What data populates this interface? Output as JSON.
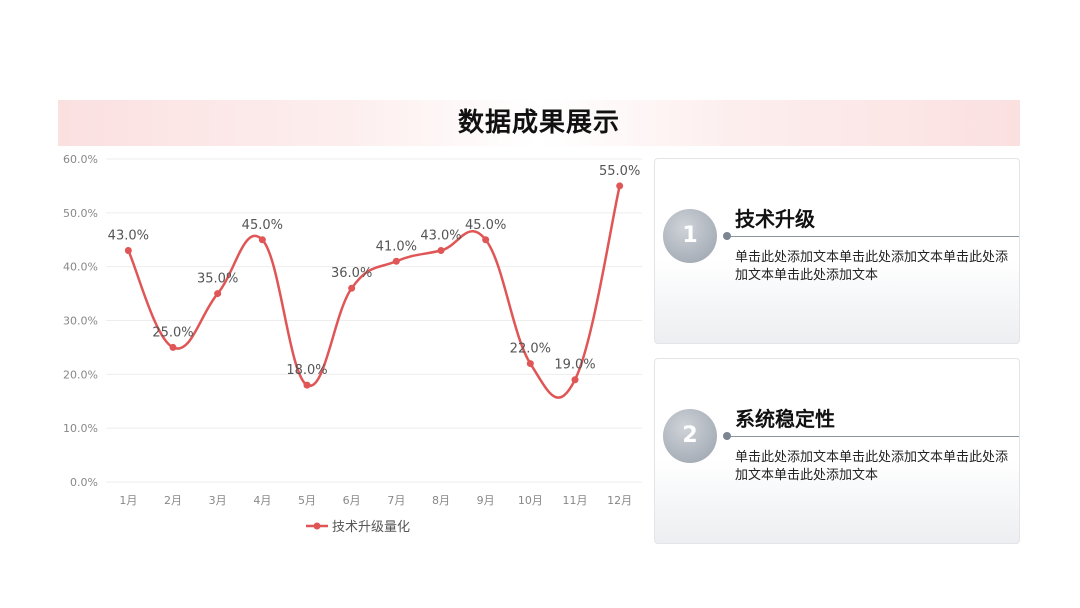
{
  "title": "数据成果展示",
  "chart_data": {
    "type": "line",
    "categories": [
      "1月",
      "2月",
      "3月",
      "4月",
      "5月",
      "6月",
      "7月",
      "8月",
      "9月",
      "10月",
      "11月",
      "12月"
    ],
    "series": [
      {
        "name": "技术升级量化",
        "values": [
          43.0,
          25.0,
          35.0,
          45.0,
          18.0,
          36.0,
          41.0,
          43.0,
          45.0,
          22.0,
          19.0,
          55.0
        ],
        "labels": [
          "43.0%",
          "25.0%",
          "35.0%",
          "45.0%",
          "18.0%",
          "36.0%",
          "41.0%",
          "43.0%",
          "45.0%",
          "22.0%",
          "19.0%",
          "55.0%"
        ],
        "color": "#e05555"
      }
    ],
    "yticks": [
      "0.0%",
      "10.0%",
      "20.0%",
      "30.0%",
      "40.0%",
      "50.0%",
      "60.0%"
    ],
    "ylim": [
      0,
      60
    ],
    "grid": true,
    "legend": "bottom",
    "smooth": true
  },
  "cards": [
    {
      "number": "1",
      "title": "技术升级",
      "text": "单击此处添加文本单击此处添加文本单击此处添加文本单击此处添加文本"
    },
    {
      "number": "2",
      "title": "系统稳定性",
      "text": "单击此处添加文本单击此处添加文本单击此处添加文本单击此处添加文本"
    }
  ]
}
